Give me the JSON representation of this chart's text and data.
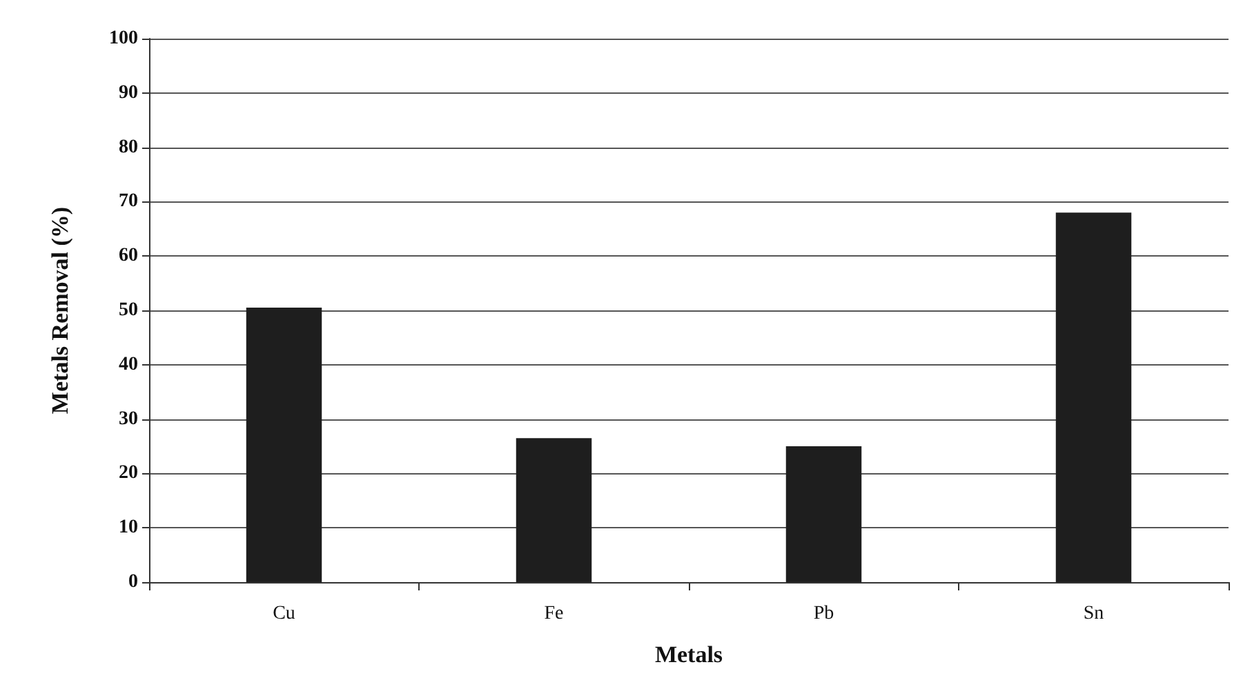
{
  "chart_data": {
    "type": "bar",
    "xlabel": "Metals",
    "ylabel": "Metals Removal (%)",
    "categories": [
      "Cu",
      "Fe",
      "Pb",
      "Sn"
    ],
    "values": [
      50.5,
      26.5,
      25,
      68
    ],
    "color": "#1e1e1e",
    "ylim": [
      0,
      100
    ],
    "yticks": [
      0,
      10,
      20,
      30,
      40,
      50,
      60,
      70,
      80,
      90,
      100
    ],
    "grid": "y"
  }
}
